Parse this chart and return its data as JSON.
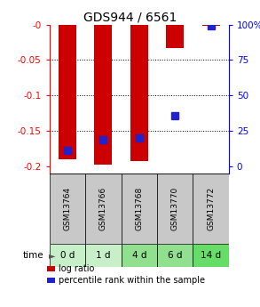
{
  "title": "GDS944 / 6561",
  "samples": [
    "GSM13764",
    "GSM13766",
    "GSM13768",
    "GSM13770",
    "GSM13772"
  ],
  "time_labels": [
    "0 d",
    "1 d",
    "4 d",
    "6 d",
    "14 d"
  ],
  "log_ratios": [
    -0.19,
    -0.197,
    -0.193,
    -0.033,
    -0.002
  ],
  "percentile_ranks_y": [
    -0.178,
    -0.163,
    -0.16,
    -0.128,
    -0.002
  ],
  "ylim_left": [
    -0.21,
    0.0
  ],
  "yticks_left": [
    0.0,
    -0.05,
    -0.1,
    -0.15,
    -0.2
  ],
  "ytick_labels_left": [
    "-0",
    "-0.05",
    "-0.1",
    "-0.15",
    "-0.2"
  ],
  "pct_ticks_y": [
    0.0,
    -0.05,
    -0.1,
    -0.15,
    -0.2
  ],
  "pct_tick_labels": [
    "100%",
    "75",
    "50",
    "25",
    "0"
  ],
  "bar_color": "#cc0000",
  "pct_color": "#2222cc",
  "bar_width": 0.5,
  "pct_marker_size": 6,
  "sample_bg_color": "#c8c8c8",
  "time_bg_colors": [
    "#c8f0c8",
    "#c8f0c8",
    "#90e090",
    "#90e090",
    "#66dd66"
  ],
  "legend_items": [
    "log ratio",
    "percentile rank within the sample"
  ],
  "title_fontsize": 10,
  "tick_fontsize": 7.5,
  "sample_fontsize": 6.5,
  "time_fontsize": 7.5,
  "legend_fontsize": 7
}
